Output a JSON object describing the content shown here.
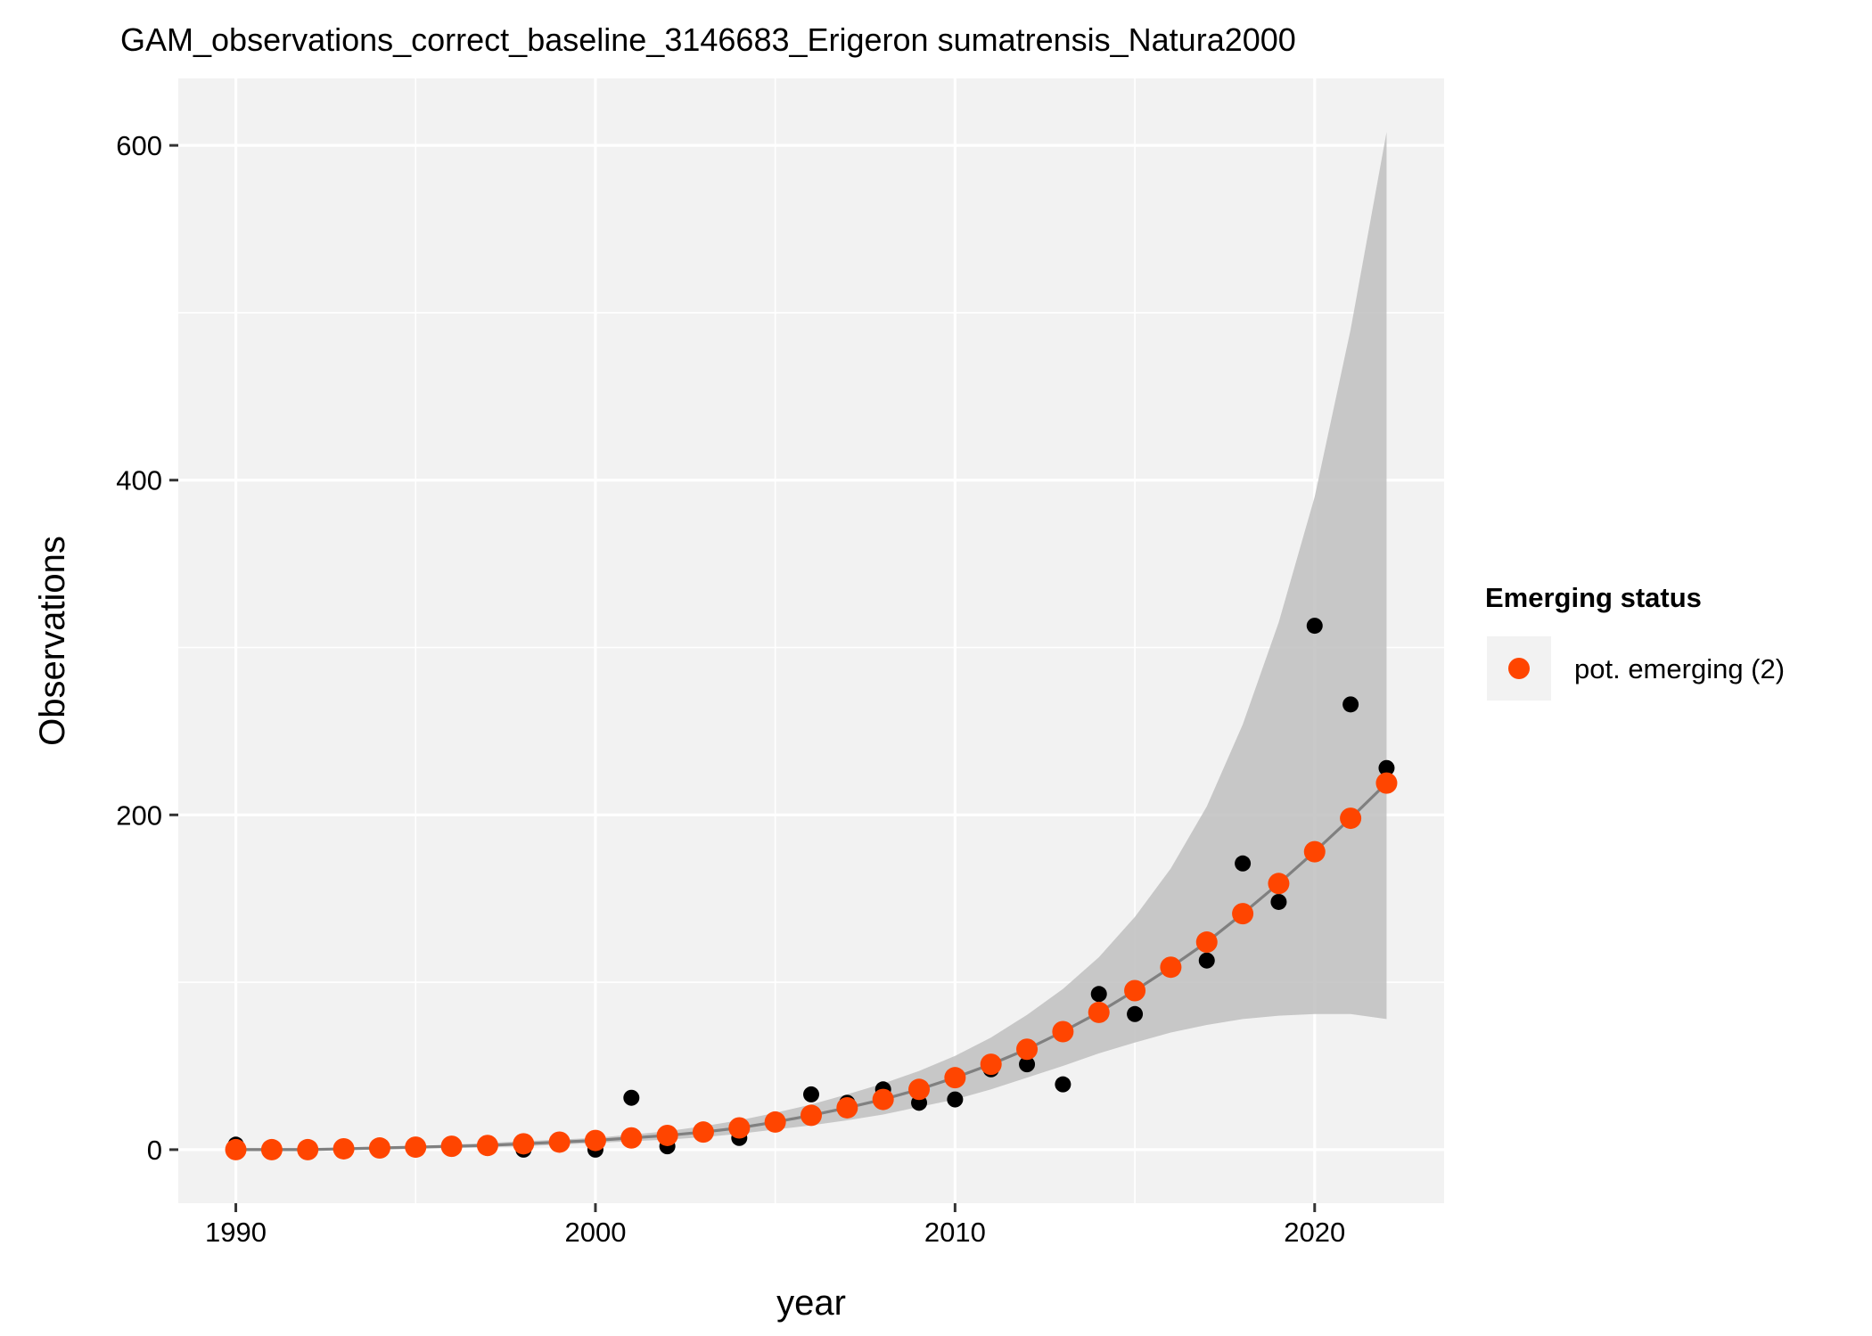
{
  "chart_data": {
    "type": "scatter",
    "title": "GAM_observations_correct_baseline_3146683_Erigeron sumatrensis_Natura2000",
    "xlabel": "year",
    "ylabel": "Observations",
    "xlim": [
      1988.4,
      2023.6
    ],
    "ylim": [
      -32,
      640
    ],
    "x_ticks": [
      1990,
      2000,
      2010,
      2020
    ],
    "x_tick_labels": [
      "1990",
      "2000",
      "2010",
      "2020"
    ],
    "y_ticks": [
      0,
      200,
      400,
      600
    ],
    "y_tick_labels": [
      "0",
      "200",
      "400",
      "600"
    ],
    "grid": true,
    "legend_position": "right",
    "series": [
      {
        "name": "observations",
        "mark": "point",
        "color": "#000000",
        "x": [
          1990,
          1991,
          1992,
          1993,
          1994,
          1995,
          1996,
          1997,
          1998,
          1999,
          2000,
          2001,
          2002,
          2003,
          2004,
          2005,
          2006,
          2007,
          2008,
          2009,
          2010,
          2011,
          2012,
          2013,
          2014,
          2015,
          2016,
          2017,
          2018,
          2019,
          2020,
          2021,
          2022
        ],
        "values": [
          3,
          0,
          0,
          0,
          1,
          1,
          1,
          1,
          0,
          5,
          0,
          31,
          2,
          10,
          7,
          17,
          33,
          28,
          36,
          28,
          30,
          48,
          51,
          39,
          93,
          81,
          110,
          113,
          171,
          148,
          313,
          266,
          228
        ]
      },
      {
        "name": "GAM fit",
        "mark": "line",
        "color": "#808080",
        "x": [
          1990,
          1991,
          1992,
          1993,
          1994,
          1995,
          1996,
          1997,
          1998,
          1999,
          2000,
          2001,
          2002,
          2003,
          2004,
          2005,
          2006,
          2007,
          2008,
          2009,
          2010,
          2011,
          2012,
          2013,
          2014,
          2015,
          2016,
          2017,
          2018,
          2019,
          2020,
          2021,
          2022
        ],
        "values": [
          0,
          0,
          0,
          0.5,
          1,
          1.5,
          2,
          2.5,
          3.5,
          4.5,
          5.5,
          7,
          8.5,
          10.5,
          13,
          16.5,
          20.5,
          25,
          30,
          36,
          43,
          51,
          60,
          70.5,
          82,
          95,
          109,
          124,
          141,
          159,
          178,
          198,
          219
        ],
        "ci_lower": [
          0,
          0,
          0,
          0,
          0,
          0.5,
          1,
          1.5,
          2,
          3,
          4,
          5,
          6,
          7.5,
          9.5,
          12,
          14.5,
          17.5,
          21,
          25.5,
          30,
          36,
          43,
          50,
          57.5,
          64,
          70,
          74.5,
          78,
          80,
          81,
          81,
          78
        ],
        "ci_upper": [
          1,
          1,
          1,
          1,
          1.5,
          2,
          3,
          4,
          5,
          6,
          7,
          9,
          11,
          14,
          17.5,
          22,
          27,
          33,
          39.5,
          47,
          56,
          67,
          80.5,
          96,
          115,
          139,
          168,
          205,
          254,
          315,
          390,
          490,
          608
        ]
      },
      {
        "name": "pot. emerging (2)",
        "mark": "point",
        "color": "#FF4500",
        "x": [
          1990,
          1991,
          1992,
          1993,
          1994,
          1995,
          1996,
          1997,
          1998,
          1999,
          2000,
          2001,
          2002,
          2003,
          2004,
          2005,
          2006,
          2007,
          2008,
          2009,
          2010,
          2011,
          2012,
          2013,
          2014,
          2015,
          2016,
          2017,
          2018,
          2019,
          2020,
          2021,
          2022
        ],
        "values": [
          0,
          0,
          0,
          0.5,
          1,
          1.5,
          2,
          2.5,
          3.5,
          4.5,
          5.5,
          7,
          8.5,
          10.5,
          13,
          16.5,
          20.5,
          25,
          30,
          36,
          43,
          51,
          60,
          70.5,
          82,
          95,
          109,
          124,
          141,
          159,
          178,
          198,
          219
        ]
      }
    ],
    "legend": {
      "title": "Emerging status",
      "entries": [
        {
          "label": "pot. emerging (2)",
          "color": "#FF4500"
        }
      ]
    }
  }
}
